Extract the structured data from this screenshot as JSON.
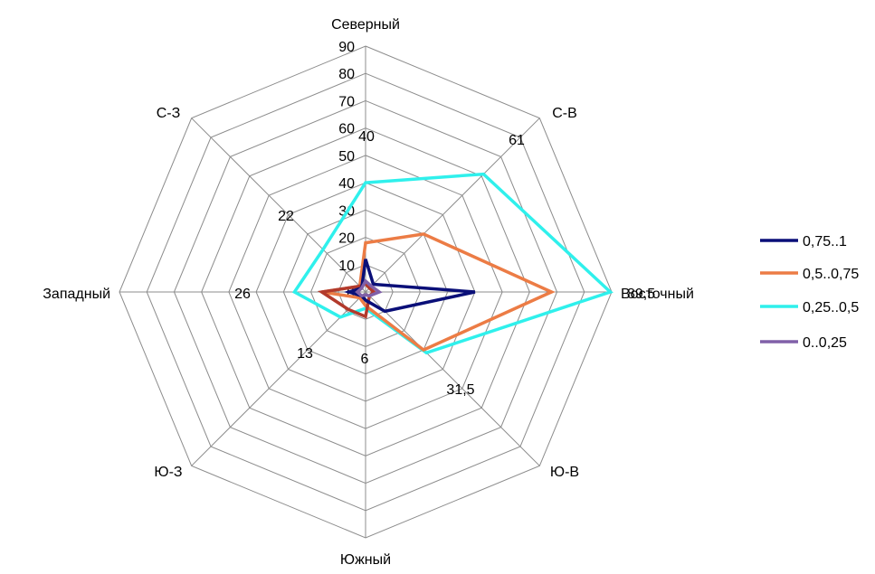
{
  "chart_data": {
    "type": "radar",
    "categories": [
      "Северный",
      "С-В",
      "Восточный",
      "Ю-В",
      "Южный",
      "Ю-З",
      "Западный",
      "С-З"
    ],
    "rlim": [
      0,
      90
    ],
    "ticks": [
      "0",
      "10",
      "20",
      "30",
      "40",
      "50",
      "60",
      "70",
      "80",
      "90"
    ],
    "tick_values": [
      0,
      10,
      20,
      30,
      40,
      50,
      60,
      70,
      80,
      90
    ],
    "grid": true,
    "legend_position": "right",
    "series": [
      {
        "name": "0,75..1",
        "color": "#0a0f78",
        "values": [
          12,
          4,
          40,
          10,
          3,
          2,
          6,
          2
        ]
      },
      {
        "name": "0,5..0,75",
        "color": "#ec7c45",
        "values": [
          18,
          30,
          68,
          30,
          5,
          3,
          16,
          3
        ]
      },
      {
        "name": "0,25..0,5",
        "color": "#2ff0ec",
        "values": [
          40,
          61,
          89.5,
          31.5,
          6,
          13,
          26,
          22
        ]
      },
      {
        "name": "0..0,25",
        "color": "#8060a8",
        "values": [
          4,
          3,
          5,
          2,
          1,
          2,
          3,
          2
        ]
      }
    ],
    "extra_series": [
      {
        "color": "#b23a2c",
        "values": [
          3,
          2,
          3,
          2,
          9,
          9,
          16,
          3
        ]
      }
    ],
    "data_labels": [
      {
        "category": "Северный",
        "text": "40",
        "value": 40
      },
      {
        "category": "С-В",
        "text": "61",
        "value": 61
      },
      {
        "category": "Восточный",
        "text": "89,5",
        "value": 89.5
      },
      {
        "category": "Ю-В",
        "text": "31,5",
        "value": 31.5
      },
      {
        "category": "Южный",
        "text": "6",
        "value": 6
      },
      {
        "category": "Ю-З",
        "text": "13",
        "value": 13
      },
      {
        "category": "Западный",
        "text": "26",
        "value": 26
      },
      {
        "category": "С-З",
        "text": "22",
        "value": 22
      }
    ]
  }
}
